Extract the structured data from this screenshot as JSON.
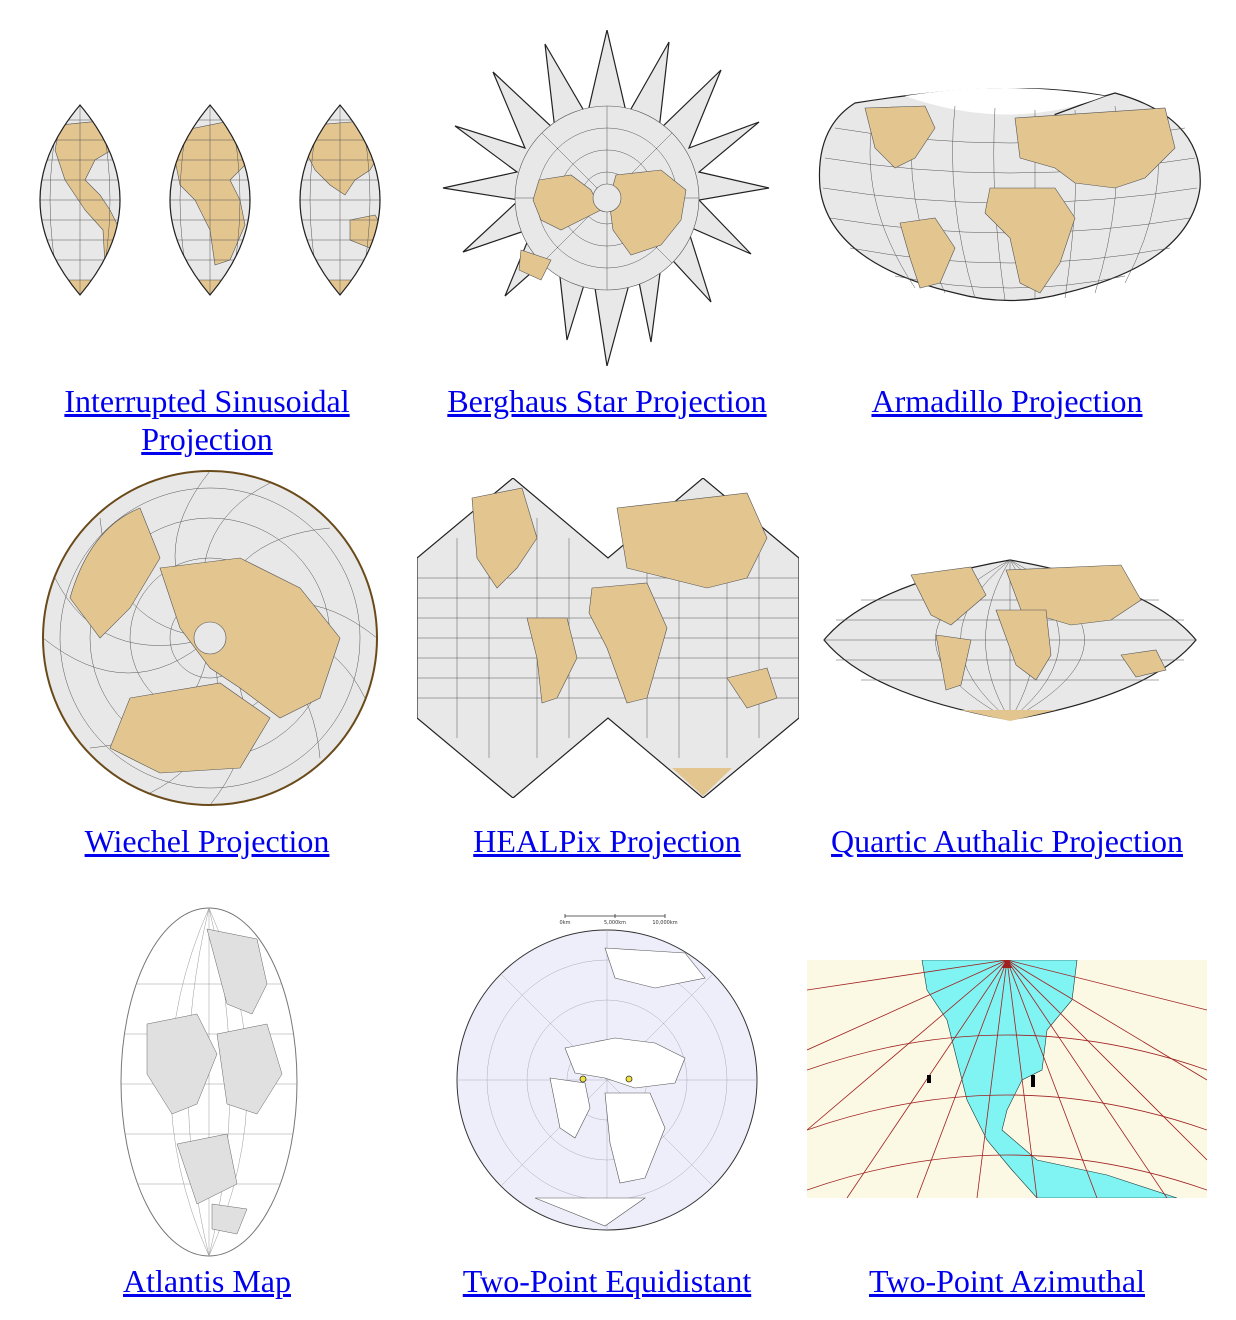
{
  "colors": {
    "link": "#0000ee",
    "ocean": "#e8e8e8",
    "land": "#e3c590",
    "graticule": "#555555",
    "azimuthal_ocean": "#fbf8e4",
    "azimuthal_land": "#7ff4f2",
    "azimuthal_lines": "#a02020",
    "equidistant_ocean": "#eeeefb"
  },
  "gallery": [
    {
      "label": "Interrupted Sinusoidal Projection",
      "icon": "interrupted-sinusoidal-map"
    },
    {
      "label": "Berghaus Star Projection",
      "icon": "berghaus-star-map"
    },
    {
      "label": "Armadillo Projection",
      "icon": "armadillo-map"
    },
    {
      "label": "Wiechel Projection",
      "icon": "wiechel-map"
    },
    {
      "label": "HEALPix Projection",
      "icon": "healpix-map"
    },
    {
      "label": "Quartic Authalic Projection",
      "icon": "quartic-authalic-map"
    },
    {
      "label": "Atlantis Map",
      "icon": "atlantis-map"
    },
    {
      "label": "Two-Point Equidistant",
      "icon": "two-point-equidistant-map"
    },
    {
      "label": "Two-Point Azimuthal",
      "icon": "two-point-azimuthal-map"
    }
  ],
  "scale_bar": {
    "labels": [
      "0km",
      "5,000km",
      "10,000km"
    ]
  }
}
